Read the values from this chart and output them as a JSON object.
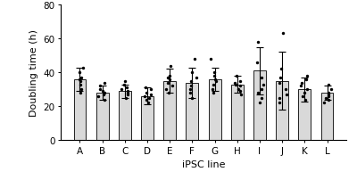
{
  "categories": [
    "A",
    "B",
    "C",
    "D",
    "E",
    "F",
    "G",
    "H",
    "I",
    "J",
    "K",
    "L"
  ],
  "bar_means": [
    36,
    28,
    29,
    26,
    35,
    34,
    36,
    33,
    41,
    35,
    30,
    28
  ],
  "bar_errors": [
    7,
    4,
    4,
    5,
    7,
    9,
    7,
    5,
    14,
    17,
    7,
    4
  ],
  "bar_color": "#d9d9d9",
  "bar_edgecolor": "#000000",
  "dot_color": "#000000",
  "xlabel": "iPSC line",
  "ylabel": "Doubling time (h)",
  "ylim": [
    0,
    80
  ],
  "yticks": [
    0,
    20,
    40,
    60,
    80
  ],
  "dots": [
    [
      28,
      30,
      33,
      35,
      36,
      37,
      40,
      43
    ],
    [
      24,
      26,
      27,
      28,
      29,
      30,
      32,
      34
    ],
    [
      25,
      27,
      28,
      29,
      30,
      31,
      33,
      35
    ],
    [
      22,
      24,
      25,
      26,
      27,
      28,
      30,
      31
    ],
    [
      28,
      30,
      32,
      34,
      36,
      37,
      38,
      44
    ],
    [
      25,
      28,
      30,
      32,
      35,
      37,
      40,
      48
    ],
    [
      28,
      30,
      33,
      35,
      36,
      38,
      40,
      48
    ],
    [
      27,
      29,
      30,
      32,
      33,
      34,
      35,
      38
    ],
    [
      22,
      25,
      28,
      30,
      33,
      37,
      46,
      58
    ],
    [
      22,
      25,
      27,
      30,
      34,
      37,
      42,
      63
    ],
    [
      24,
      26,
      28,
      30,
      32,
      34,
      36,
      38
    ],
    [
      22,
      24,
      25,
      26,
      27,
      28,
      30,
      33
    ]
  ],
  "bar_width": 0.55,
  "capsize": 3,
  "label_fontsize": 8,
  "tick_fontsize": 7.5
}
